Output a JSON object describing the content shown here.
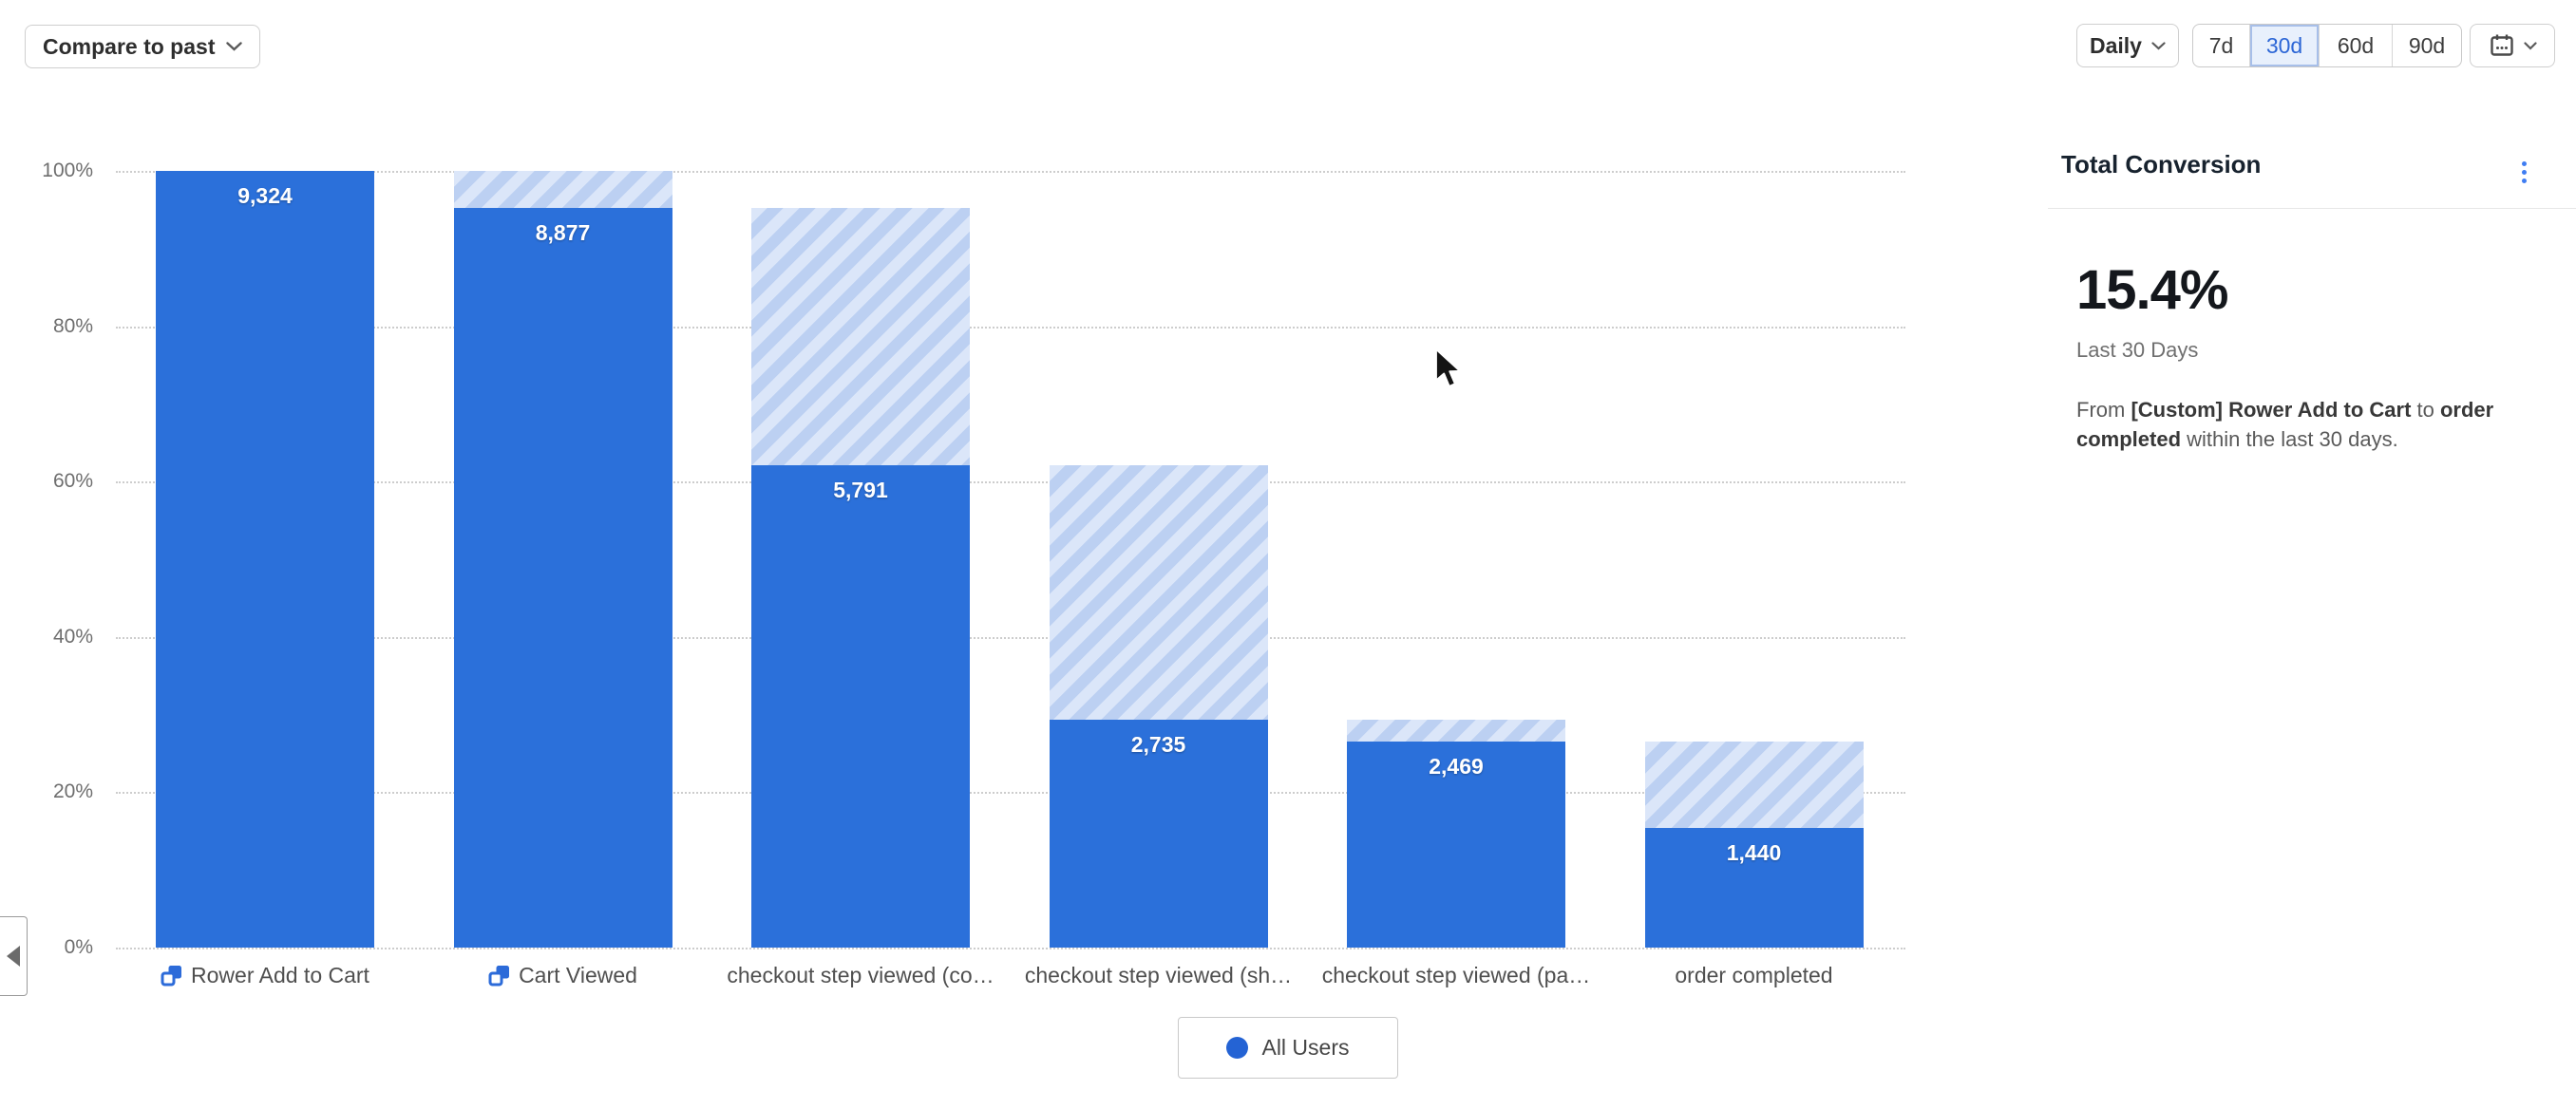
{
  "toolbar": {
    "compare_label": "Compare to past",
    "granularity_label": "Daily",
    "ranges": [
      {
        "label": "7d",
        "selected": false
      },
      {
        "label": "30d",
        "selected": true
      },
      {
        "label": "60d",
        "selected": false
      },
      {
        "label": "90d",
        "selected": false
      }
    ]
  },
  "colors": {
    "accent_blue": "#2C6BD9",
    "bar_blue": "#2B70DA",
    "hatch_light": "#DBE6F9",
    "hatch_dark": "#BCD0F2",
    "selected_range_bg": "#E8F0FC"
  },
  "chart_data": {
    "type": "bar",
    "subtype": "funnel-conversion",
    "title": "",
    "xlabel": "",
    "ylabel": "",
    "categories": [
      "Rower Add to Cart",
      "Cart Viewed",
      "checkout step viewed (co…",
      "checkout step viewed (sh…",
      "checkout step viewed (pa…",
      "order completed"
    ],
    "category_has_icon": [
      true,
      true,
      false,
      false,
      false,
      false
    ],
    "series": [
      {
        "name": "All Users",
        "counts": [
          9324,
          8877,
          5791,
          2735,
          2469,
          1440
        ],
        "count_labels": [
          "9,324",
          "8,877",
          "5,791",
          "2,735",
          "2,469",
          "1,440"
        ],
        "pct_of_first": [
          100,
          95.2,
          62.1,
          29.3,
          26.5,
          15.4
        ]
      }
    ],
    "hatch_note": "striped segment above each solid bar spans from current step % up to previous step %",
    "y_ticks": [
      "100%",
      "80%",
      "60%",
      "40%",
      "20%",
      "0%"
    ],
    "ylim": [
      0,
      100
    ],
    "grid": "dotted horizontal major lines every 20%",
    "legend_position": "bottom-center"
  },
  "legend": {
    "label": "All Users"
  },
  "summary": {
    "title": "Total Conversion",
    "value": "15.4%",
    "period": "Last 30 Days",
    "description_parts": [
      {
        "text": "From ",
        "bold": false
      },
      {
        "text": "[Custom] Rower Add to Cart",
        "bold": true
      },
      {
        "text": " to ",
        "bold": false
      },
      {
        "text": "order completed",
        "bold": true
      },
      {
        "text": " within the last 30 days.",
        "bold": false
      }
    ]
  }
}
